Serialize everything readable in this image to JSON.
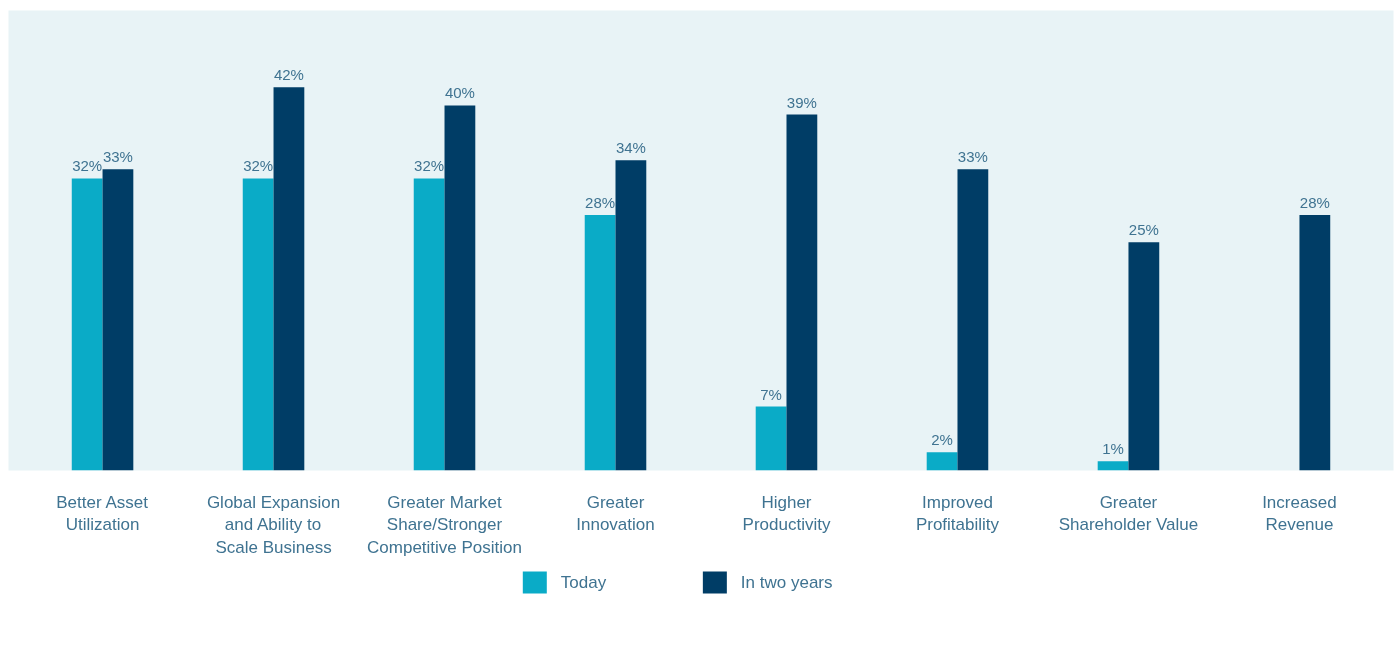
{
  "chart_data": {
    "type": "bar",
    "categories": [
      "Better Asset\nUtilization",
      "Global Expansion\nand Ability to\nScale Business",
      "Greater Market\nShare/Stronger\nCompetitive Position",
      "Greater\nInnovation",
      "Higher\nProductivity",
      "Improved\nProfitability",
      "Greater\nShareholder Value",
      "Increased\nRevenue"
    ],
    "series": [
      {
        "name": "Today",
        "color": "#0aabc7",
        "values": [
          32,
          32,
          32,
          28,
          7,
          2,
          1,
          null
        ],
        "value_labels": [
          "32%",
          "32%",
          "32%",
          "28%",
          "7%",
          "2%",
          "1%",
          null
        ]
      },
      {
        "name": "In two years",
        "color": "#003d66",
        "values": [
          33,
          42,
          40,
          34,
          39,
          33,
          25,
          28
        ],
        "value_labels": [
          "33%",
          "42%",
          "40%",
          "34%",
          "39%",
          "33%",
          "25%",
          "28%"
        ]
      }
    ],
    "grid": false,
    "legend": "bottom"
  }
}
